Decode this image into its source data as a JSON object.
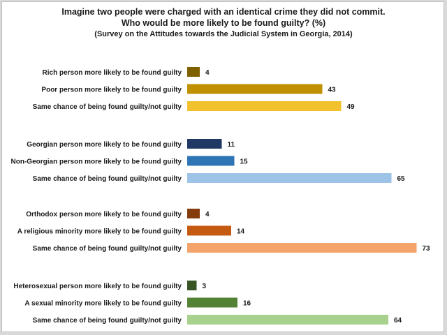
{
  "chart_data": {
    "type": "bar",
    "orientation": "horizontal",
    "title": "Imagine two people were charged with an identical crime they did not commit.",
    "title_line2": "Who would be more likely to be found guilty? (%)",
    "subtitle_main": "(Survey on the Attitudes towards the Judicial System in Georgia",
    "subtitle_year": ", 2014)",
    "xlim": [
      0,
      100
    ],
    "grid": false,
    "legend": "none",
    "groups": [
      {
        "bars": [
          {
            "label": "Rich person more likely to be found guilty",
            "value": 4,
            "color": "#7f6000"
          },
          {
            "label": "Poor person more likely to be found guilty",
            "value": 43,
            "color": "#bf9000"
          },
          {
            "label": "Same chance of being found guilty/not guilty",
            "value": 49,
            "color": "#f2c12e"
          }
        ]
      },
      {
        "bars": [
          {
            "label": "Georgian person more likely to be found guilty",
            "value": 11,
            "color": "#1f3864"
          },
          {
            "label": "Non-Georgian person more likely to be found guilty",
            "value": 15,
            "color": "#2e75b6"
          },
          {
            "label": "Same chance of being found guilty/not guilty",
            "value": 65,
            "color": "#9dc3e6"
          }
        ]
      },
      {
        "bars": [
          {
            "label": "Orthodox person more likely to be found guilty",
            "value": 4,
            "color": "#843c0c"
          },
          {
            "label": "A religious minority more likely to be found guilty",
            "value": 14,
            "color": "#c55a11"
          },
          {
            "label": "Same chance of being found guilty/not guilty",
            "value": 73,
            "color": "#f4a36b"
          }
        ]
      },
      {
        "bars": [
          {
            "label": "Heterosexual person more likely to be found guilty",
            "value": 3,
            "color": "#375623"
          },
          {
            "label": "A sexual minority more likely to be found guilty",
            "value": 16,
            "color": "#548235"
          },
          {
            "label": "Same chance of being found guilty/not guilty",
            "value": 64,
            "color": "#a9d18e"
          }
        ]
      }
    ]
  }
}
